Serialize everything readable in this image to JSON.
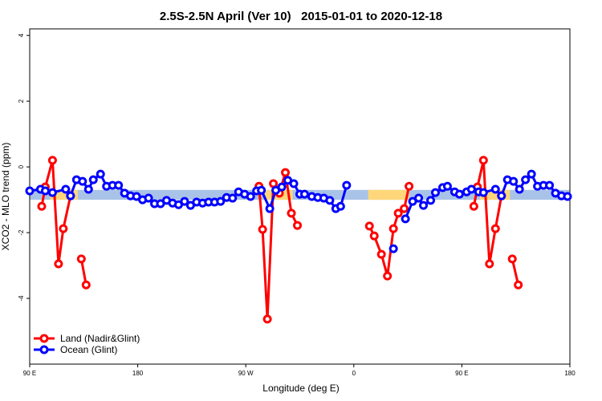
{
  "chart_data": {
    "type": "line",
    "title": "2.5S-2.5N April (Ver 10)   2015-01-01 to 2020-12-18",
    "x_label": "Longitude (deg E)",
    "y_label": "XCO2 - MLO trend (ppm)",
    "xlim": [
      90,
      540
    ],
    "ylim": [
      -6.0,
      4.2
    ],
    "xticks": [
      {
        "value": 90,
        "label": "90 E"
      },
      180,
      {
        "value": 270,
        "label": "90 W"
      },
      {
        "value": 360,
        "label": "0"
      },
      {
        "value": 450,
        "label": "90 E"
      },
      {
        "value": 540,
        "label": "180"
      }
    ],
    "yticks": [
      -4,
      -2,
      0,
      2,
      4
    ],
    "legend": "bottom-left",
    "band": {
      "ylim": [
        -0.7,
        -1.0
      ],
      "color": "#a9c3e8",
      "land_color": "#ffd77a",
      "land_ranges": [
        [
          107,
          130
        ],
        [
          286,
          309
        ],
        [
          372,
          406
        ],
        [
          465,
          490
        ]
      ]
    },
    "series": [
      {
        "name": "Land (Nadir&Glint)",
        "color": "#ff0000",
        "x": [
          100,
          103,
          109,
          114,
          118,
          124,
          null,
          133,
          137,
          null,
          281,
          284,
          288,
          293,
          298,
          303,
          308,
          313,
          null,
          373,
          377,
          383,
          388,
          393,
          397,
          402,
          406,
          null,
          460,
          463,
          468,
          473,
          478,
          483,
          null,
          492,
          497
        ],
        "values": [
          -1.2,
          -0.61,
          0.2,
          -2.95,
          -1.88,
          -0.88,
          null,
          -2.8,
          -3.59,
          null,
          -0.59,
          -1.9,
          -4.63,
          -0.51,
          -0.8,
          -0.17,
          -1.41,
          -1.78,
          null,
          -1.8,
          -2.1,
          -2.66,
          -3.32,
          -1.88,
          -1.41,
          -1.27,
          -0.59,
          null,
          -1.2,
          -0.61,
          0.2,
          -2.95,
          -1.88,
          -0.88,
          null,
          -2.8,
          -3.59
        ]
      },
      {
        "name": "Ocean (Glint)",
        "color": "#0000ff",
        "x": [
          90,
          99,
          103,
          109,
          120,
          124,
          129,
          134,
          139,
          143,
          149,
          154,
          159,
          164,
          169,
          174,
          179,
          184,
          189,
          194,
          199,
          204,
          209,
          214,
          219,
          224,
          229,
          234,
          239,
          244,
          249,
          254,
          259,
          264,
          269,
          274,
          279,
          283,
          290,
          295,
          300,
          305,
          310,
          315,
          319,
          325,
          330,
          335,
          340,
          345,
          349,
          354,
          null,
          393,
          null,
          403,
          409,
          414,
          418,
          424,
          428,
          434,
          438,
          444,
          448,
          454,
          458,
          464,
          468,
          478,
          483,
          488,
          493,
          498,
          503,
          508,
          513,
          518,
          523,
          528,
          533,
          538
        ],
        "values": [
          -0.73,
          -0.68,
          -0.73,
          -0.78,
          -0.68,
          -0.88,
          -0.39,
          -0.44,
          -0.68,
          -0.39,
          -0.22,
          -0.59,
          -0.56,
          -0.56,
          -0.8,
          -0.88,
          -0.9,
          -1.0,
          -0.95,
          -1.12,
          -1.12,
          -1.02,
          -1.1,
          -1.15,
          -1.05,
          -1.17,
          -1.07,
          -1.1,
          -1.07,
          -1.07,
          -1.05,
          -0.93,
          -0.95,
          -0.76,
          -0.83,
          -0.9,
          -0.73,
          -0.71,
          -1.27,
          -0.71,
          -0.61,
          -0.41,
          -0.51,
          -0.83,
          -0.83,
          -0.9,
          -0.93,
          -0.95,
          -1.02,
          -1.27,
          -1.2,
          -0.56,
          null,
          -2.49,
          null,
          -1.58,
          -1.05,
          -0.95,
          -1.17,
          -1.02,
          -0.78,
          -0.63,
          -0.59,
          -0.76,
          -0.83,
          -0.76,
          -0.68,
          -0.76,
          -0.78,
          -0.68,
          -0.88,
          -0.39,
          -0.44,
          -0.68,
          -0.39,
          -0.22,
          -0.59,
          -0.56,
          -0.56,
          -0.8,
          -0.88,
          -0.9
        ]
      }
    ]
  }
}
